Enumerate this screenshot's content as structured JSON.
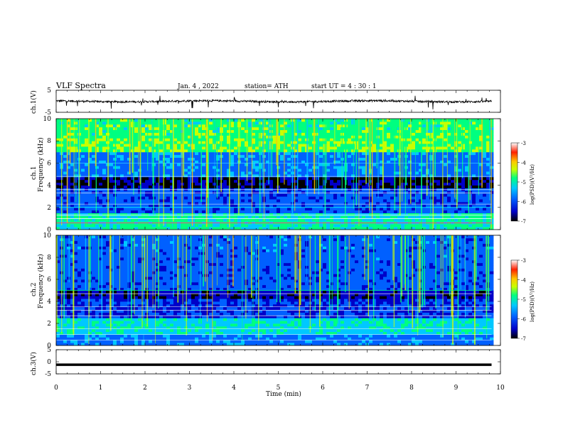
{
  "header": {
    "title": "VLF  Spectra",
    "date": "Jan. 4  , 2022",
    "station": "station= ATH",
    "start": "start  UT  =   4  : 30 : 1"
  },
  "colorbar": {
    "label": "log(PSD)(V²/Hz)",
    "ticks": [
      "-3",
      "-4",
      "-5",
      "-6",
      "-7"
    ],
    "colors": [
      "#000000",
      "#0000c8",
      "#0060ff",
      "#00c8ff",
      "#00ff80",
      "#c8ff00",
      "#ffc800",
      "#ff2000",
      "#ffffff"
    ]
  },
  "chart_data": [
    {
      "type": "line",
      "name": "ch1-waveform",
      "ylabel": "ch.1(V)",
      "ylim": [
        -5,
        5
      ],
      "yticks": [
        "5",
        "-5"
      ],
      "x_range_min": [
        0,
        10
      ],
      "data_extent_min": [
        0,
        9.8
      ],
      "approx_level_v": 0,
      "approx_noise_v": [
        -1.5,
        1.5
      ],
      "grid": false
    },
    {
      "type": "heatmap",
      "name": "ch1-spectrogram",
      "ylabel": "ch.1\nFrequency  (kHz)",
      "ylim": [
        0,
        10
      ],
      "yticks": [
        "0",
        "2",
        "4",
        "6",
        "8",
        "10"
      ],
      "description_levels": {
        "0-1.5 kHz": -5,
        "1.5-3.8 kHz": -6,
        "3.8-4.8 kHz": -6.8,
        "4.8-7 kHz": -5.8,
        "7-10 kHz": -4.8
      },
      "colorscale_range": [
        -7,
        -3
      ]
    },
    {
      "type": "heatmap",
      "name": "ch2-spectrogram",
      "ylabel": "ch.2\nFrequency  (kHz)",
      "ylim": [
        0,
        10
      ],
      "yticks": [
        "0",
        "2",
        "4",
        "6",
        "8",
        "10"
      ],
      "description_levels": {
        "0-1 kHz": -5.8,
        "1-2.5 kHz": -5.2,
        "2.5-4.3 kHz": -6.2,
        "4.3-5 kHz": -6.6,
        "5-10 kHz": -6.0
      },
      "colorscale_range": [
        -7,
        -3
      ]
    },
    {
      "type": "line",
      "name": "ch3-waveform",
      "ylabel": "ch.3(V)",
      "ylim": [
        -5,
        5
      ],
      "yticks": [
        "5",
        "0",
        "-5"
      ],
      "approx_level_v": -1.2,
      "grid": false
    }
  ],
  "xaxis": {
    "label": "Time  (min)",
    "ticks": [
      "0",
      "1",
      "2",
      "3",
      "4",
      "5",
      "6",
      "7",
      "8",
      "9",
      "10"
    ],
    "range": [
      0,
      10
    ]
  }
}
